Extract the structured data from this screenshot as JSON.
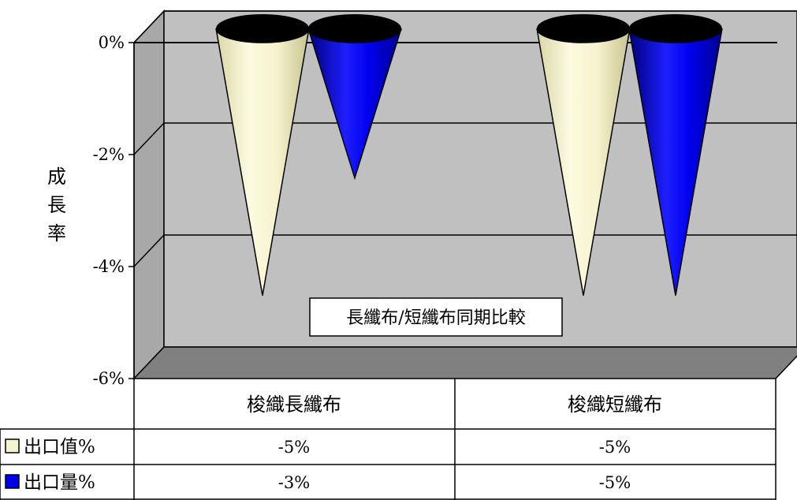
{
  "chart_data": {
    "type": "bar",
    "bar_shape": "cone",
    "title": "",
    "annotation": "長纖布/短纖布同期比較",
    "ylabel": "成長率",
    "ylim": [
      -6,
      0
    ],
    "yticks": [
      0,
      -2,
      -4,
      -6
    ],
    "ytick_labels": [
      "0%",
      "-2%",
      "-4%",
      "-6%"
    ],
    "categories": [
      "梭織長纖布",
      "梭織短纖布"
    ],
    "series": [
      {
        "name": "出口值%",
        "color": "#f6f3cf",
        "values": [
          -4.8,
          -4.8
        ]
      },
      {
        "name": "出口量%",
        "color": "#0000ee",
        "values": [
          -2.7,
          -4.8
        ]
      }
    ],
    "data_table": {
      "rows": [
        {
          "legend": "出口值%",
          "cells": [
            "-5%",
            "-5%"
          ]
        },
        {
          "legend": "出口量%",
          "cells": [
            "-3%",
            "-5%"
          ]
        }
      ]
    },
    "grid": true,
    "wall_color": "#c0c0c0",
    "floor_color": "#808080"
  }
}
